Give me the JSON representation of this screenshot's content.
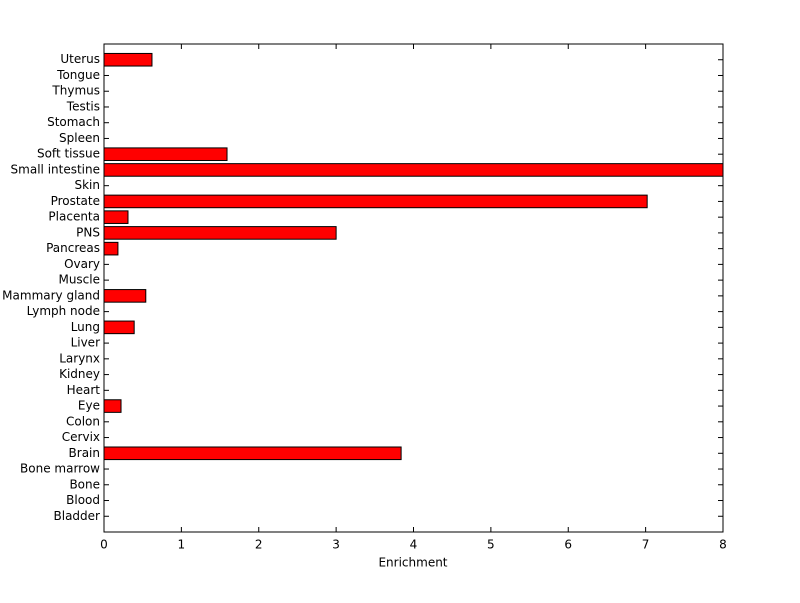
{
  "chart_data": {
    "type": "barh",
    "xlabel": "Enrichment",
    "categories": [
      "Bladder",
      "Blood",
      "Bone",
      "Bone marrow",
      "Brain",
      "Cervix",
      "Colon",
      "Eye",
      "Heart",
      "Kidney",
      "Larynx",
      "Liver",
      "Lung",
      "Lymph node",
      "Mammary gland",
      "Muscle",
      "Ovary",
      "Pancreas",
      "PNS",
      "Placenta",
      "Prostate",
      "Skin",
      "Small intestine",
      "Soft tissue",
      "Spleen",
      "Stomach",
      "Testis",
      "Thymus",
      "Tongue",
      "Uterus"
    ],
    "values": [
      0,
      0,
      0,
      0,
      3.84,
      0,
      0,
      0.22,
      0,
      0,
      0,
      0,
      0.39,
      0,
      0.54,
      0,
      0,
      0.18,
      3.0,
      0.31,
      7.02,
      0,
      8,
      1.59,
      0,
      0,
      0,
      0,
      0,
      0.62
    ],
    "color": "#ff0000",
    "xlim": [
      0,
      8
    ],
    "xticks": [
      0,
      1,
      2,
      3,
      4,
      5,
      6,
      7,
      8
    ],
    "grid": false
  }
}
